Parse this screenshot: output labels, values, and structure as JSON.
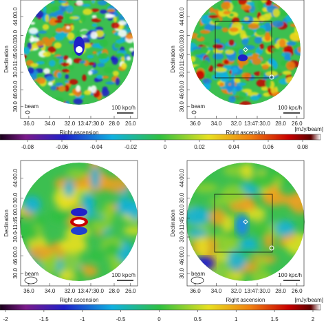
{
  "panels": [
    {
      "y_label": "Declination",
      "x_label": "Right ascension",
      "y_ticks": [
        "44:00.0",
        "30.0",
        "-11:45:00.0",
        "30.0",
        "46:00.0",
        "30.0"
      ],
      "x_ticks": [
        "36.0",
        "34.0",
        "32.0",
        "13:47:30.0",
        "28.0",
        "26.0"
      ],
      "beam": "beam",
      "scale": "100 kpc/h"
    },
    {
      "y_label": "Declination",
      "x_label": "Right ascension",
      "y_ticks": [
        "44:00.0",
        "30.0",
        "-11:45:00.0",
        "30.0",
        "46:00.0",
        "30.0"
      ],
      "x_ticks": [
        "36.0",
        "34.0",
        "32.0",
        "13:47:30.0",
        "28.0",
        "26.0"
      ],
      "beam": "beam",
      "scale": "100 kpc/h"
    },
    {
      "y_label": "Declination",
      "x_label": "Right ascension",
      "y_ticks": [
        "44:00.0",
        "30.0",
        "-11:45:00.0",
        "30.0",
        "46:00.0",
        "30.0"
      ],
      "x_ticks": [
        "36.0",
        "34.0",
        "32.0",
        "13:47:30.0",
        "28.0",
        "26.0"
      ],
      "beam": "beam",
      "scale": "100 kpc/h"
    },
    {
      "y_label": "Declination",
      "x_label": "Right ascension",
      "y_ticks": [
        "44:00.0",
        "30.0",
        "-11:45:00.0",
        "30.0",
        "46:00.0",
        "30.0"
      ],
      "x_ticks": [
        "36.0",
        "34.0",
        "32.0",
        "13:47:30.0",
        "28.0",
        "26.0"
      ],
      "beam": "beam",
      "scale": "100 kpc/h"
    }
  ],
  "colorbars": [
    {
      "unit": "[mJy/beam]",
      "ticks": [
        "-0.08",
        "-0.06",
        "-0.04",
        "-0.02",
        "0",
        "0.02",
        "0.04",
        "0.06",
        "0.08"
      ]
    },
    {
      "unit": "[mJy/beam]",
      "ticks": [
        "-2",
        "-1.5",
        "-1",
        "-0.5",
        "0",
        "0.5",
        "1",
        "1.5",
        "2"
      ]
    }
  ]
}
